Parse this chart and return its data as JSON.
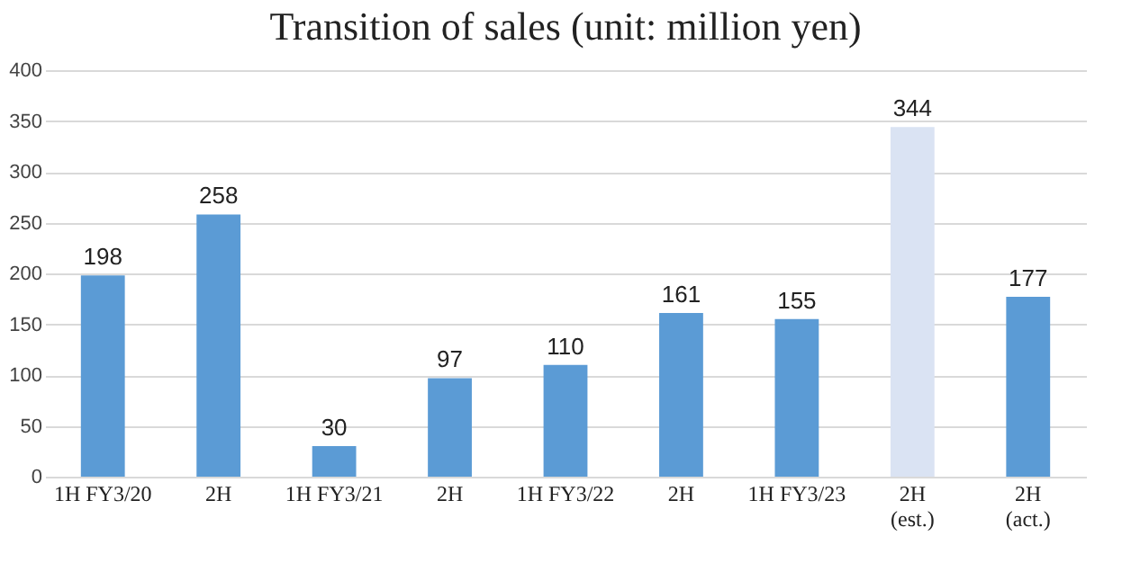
{
  "chart_data": {
    "type": "bar",
    "title": "Transition of sales (unit: million yen)",
    "categories": [
      "1H FY3/20",
      "2H",
      "1H FY3/21",
      "2H",
      "1H FY3/22",
      "2H",
      "1H FY3/23",
      "2H\n(est.)",
      "2H\n(act.)"
    ],
    "values": [
      198,
      258,
      30,
      97,
      110,
      161,
      155,
      344,
      177
    ],
    "colors": [
      "#5b9bd5",
      "#5b9bd5",
      "#5b9bd5",
      "#5b9bd5",
      "#5b9bd5",
      "#5b9bd5",
      "#5b9bd5",
      "#dae3f3",
      "#5b9bd5"
    ],
    "ylim": [
      0,
      400
    ],
    "yticks": [
      0,
      50,
      100,
      150,
      200,
      250,
      300,
      350,
      400
    ],
    "grid": "y",
    "data_labels": true
  }
}
